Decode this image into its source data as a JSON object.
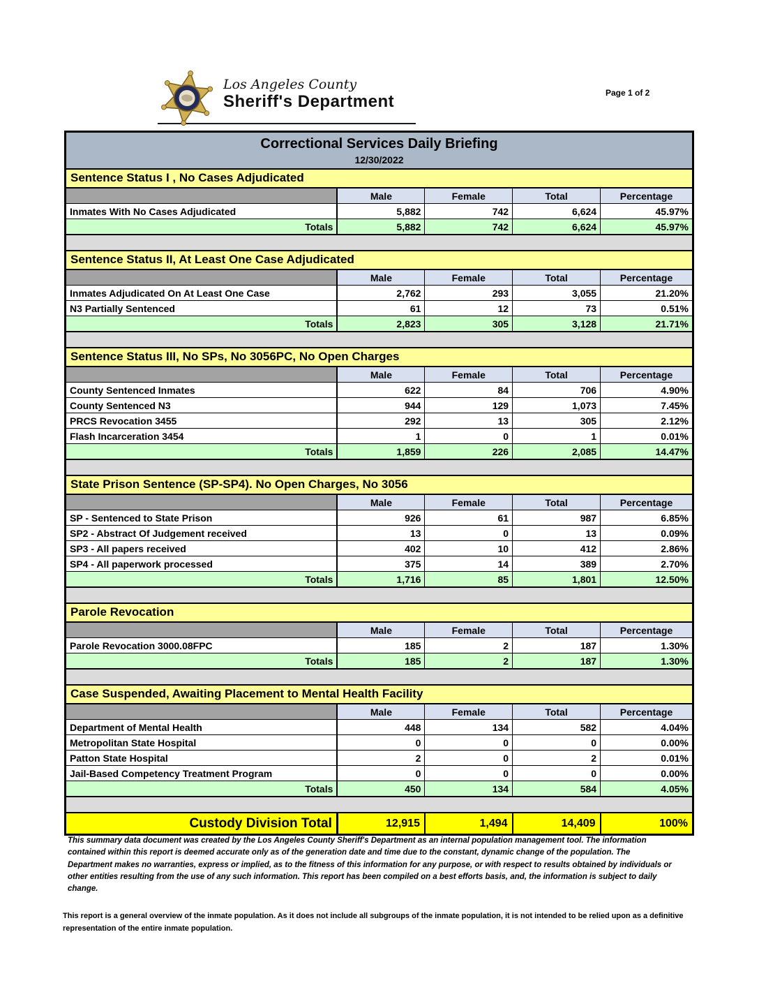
{
  "header": {
    "badge_icon": "sheriff-star-badge",
    "agency_line1": "Los Angeles County",
    "agency_line2": "Sheriff's Department",
    "page_label": "Page 1 of 2"
  },
  "report": {
    "title": "Correctional Services Daily Briefing",
    "date": "12/30/2022"
  },
  "table": {
    "columns": [
      "Male",
      "Female",
      "Total",
      "Percentage"
    ],
    "totals_label": "Totals",
    "sections": [
      {
        "title": "Sentence Status I , No Cases Adjudicated",
        "rows": [
          {
            "label": "Inmates With No Cases Adjudicated",
            "male": "5,882",
            "female": "742",
            "total": "6,624",
            "percentage": "45.97%"
          }
        ],
        "totals": {
          "male": "5,882",
          "female": "742",
          "total": "6,624",
          "percentage": "45.97%"
        }
      },
      {
        "title": "Sentence Status II, At Least One Case Adjudicated",
        "rows": [
          {
            "label": "Inmates Adjudicated On At Least One Case",
            "male": "2,762",
            "female": "293",
            "total": "3,055",
            "percentage": "21.20%"
          },
          {
            "label": "N3 Partially Sentenced",
            "male": "61",
            "female": "12",
            "total": "73",
            "percentage": "0.51%"
          }
        ],
        "totals": {
          "male": "2,823",
          "female": "305",
          "total": "3,128",
          "percentage": "21.71%"
        }
      },
      {
        "title": "Sentence Status III, No SPs, No 3056PC, No Open Charges",
        "rows": [
          {
            "label": "County Sentenced Inmates",
            "male": "622",
            "female": "84",
            "total": "706",
            "percentage": "4.90%"
          },
          {
            "label": "County Sentenced N3",
            "male": "944",
            "female": "129",
            "total": "1,073",
            "percentage": "7.45%"
          },
          {
            "label": "PRCS Revocation 3455",
            "male": "292",
            "female": "13",
            "total": "305",
            "percentage": "2.12%"
          },
          {
            "label": "Flash Incarceration 3454",
            "male": "1",
            "female": "0",
            "total": "1",
            "percentage": "0.01%"
          }
        ],
        "totals": {
          "male": "1,859",
          "female": "226",
          "total": "2,085",
          "percentage": "14.47%"
        }
      },
      {
        "title": "State Prison Sentence (SP-SP4). No Open Charges, No 3056",
        "rows": [
          {
            "label": "SP - Sentenced to State Prison",
            "male": "926",
            "female": "61",
            "total": "987",
            "percentage": "6.85%"
          },
          {
            "label": "SP2 - Abstract Of Judgement received",
            "male": "13",
            "female": "0",
            "total": "13",
            "percentage": "0.09%"
          },
          {
            "label": "SP3 - All papers received",
            "male": "402",
            "female": "10",
            "total": "412",
            "percentage": "2.86%"
          },
          {
            "label": "SP4 - All paperwork processed",
            "male": "375",
            "female": "14",
            "total": "389",
            "percentage": "2.70%"
          }
        ],
        "totals": {
          "male": "1,716",
          "female": "85",
          "total": "1,801",
          "percentage": "12.50%"
        }
      },
      {
        "title": "Parole Revocation",
        "rows": [
          {
            "label": "Parole Revocation 3000.08FPC",
            "male": "185",
            "female": "2",
            "total": "187",
            "percentage": "1.30%"
          }
        ],
        "totals": {
          "male": "185",
          "female": "2",
          "total": "187",
          "percentage": "1.30%"
        }
      },
      {
        "title": "Case Suspended, Awaiting Placement to Mental Health Facility",
        "rows": [
          {
            "label": "Department of Mental Health",
            "male": "448",
            "female": "134",
            "total": "582",
            "percentage": "4.04%"
          },
          {
            "label": "Metropolitan State Hospital",
            "male": "0",
            "female": "0",
            "total": "0",
            "percentage": "0.00%"
          },
          {
            "label": "Patton State Hospital",
            "male": "2",
            "female": "0",
            "total": "2",
            "percentage": "0.01%"
          },
          {
            "label": "Jail-Based Competency Treatment Program",
            "male": "0",
            "female": "0",
            "total": "0",
            "percentage": "0.00%"
          }
        ],
        "totals": {
          "male": "450",
          "female": "134",
          "total": "584",
          "percentage": "4.05%"
        }
      }
    ],
    "grand_total": {
      "label": "Custody Division Total",
      "male": "12,915",
      "female": "1,494",
      "total": "14,409",
      "percentage": "100%"
    }
  },
  "footnotes": {
    "disclaimer": "This summary data document was created by the Los Angeles County Sheriff's Department as an internal population management tool.  The information contained within this report is deemed accurate only as of the generation date and time due to the constant, dynamic change of the population.  The Department makes no warranties, express or implied, as to the fitness of this information for any purpose, or with respect to results obtained by individuals or other entities resulting from the use of any such information.  This report has been compiled on a best efforts basis, and, the information is subject to daily change.",
    "overview": "This report is a general overview of the inmate population.  As it does not include all subgroups of the inmate population, it is not intended to be relied upon as a definitive representation of the entire inmate population."
  },
  "colors": {
    "banner": "#AAB8C7",
    "section_header": "#FFFF99",
    "column_header": "#D8E0F0",
    "corner_cell": "#A3A3A3",
    "totals_row": "#CCFFCC",
    "grand_total_row": "#FFFF00",
    "section_gap": "#DBDBDB",
    "badge_gold": "#D2B054",
    "badge_navy": "#242B56"
  }
}
